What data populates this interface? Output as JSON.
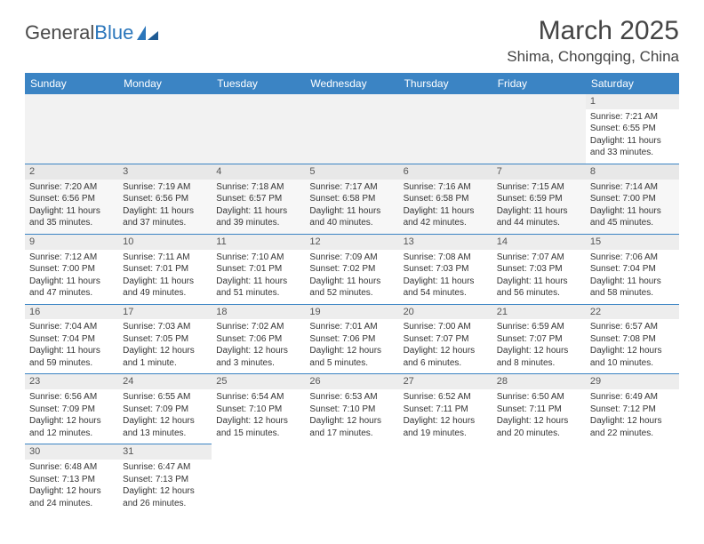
{
  "logo": {
    "text1": "General",
    "text2": "Blue"
  },
  "title": "March 2025",
  "location": "Shima, Chongqing, China",
  "colors": {
    "header_bg": "#3b84c4",
    "header_text": "#ffffff",
    "cell_border": "#3b84c4",
    "daynum_bg": "#ededed",
    "body_text": "#333333"
  },
  "weekdays": [
    "Sunday",
    "Monday",
    "Tuesday",
    "Wednesday",
    "Thursday",
    "Friday",
    "Saturday"
  ],
  "weeks": [
    [
      null,
      null,
      null,
      null,
      null,
      null,
      {
        "d": "1",
        "sr": "Sunrise: 7:21 AM",
        "ss": "Sunset: 6:55 PM",
        "dl": "Daylight: 11 hours and 33 minutes."
      }
    ],
    [
      {
        "d": "2",
        "sr": "Sunrise: 7:20 AM",
        "ss": "Sunset: 6:56 PM",
        "dl": "Daylight: 11 hours and 35 minutes."
      },
      {
        "d": "3",
        "sr": "Sunrise: 7:19 AM",
        "ss": "Sunset: 6:56 PM",
        "dl": "Daylight: 11 hours and 37 minutes."
      },
      {
        "d": "4",
        "sr": "Sunrise: 7:18 AM",
        "ss": "Sunset: 6:57 PM",
        "dl": "Daylight: 11 hours and 39 minutes."
      },
      {
        "d": "5",
        "sr": "Sunrise: 7:17 AM",
        "ss": "Sunset: 6:58 PM",
        "dl": "Daylight: 11 hours and 40 minutes."
      },
      {
        "d": "6",
        "sr": "Sunrise: 7:16 AM",
        "ss": "Sunset: 6:58 PM",
        "dl": "Daylight: 11 hours and 42 minutes."
      },
      {
        "d": "7",
        "sr": "Sunrise: 7:15 AM",
        "ss": "Sunset: 6:59 PM",
        "dl": "Daylight: 11 hours and 44 minutes."
      },
      {
        "d": "8",
        "sr": "Sunrise: 7:14 AM",
        "ss": "Sunset: 7:00 PM",
        "dl": "Daylight: 11 hours and 45 minutes."
      }
    ],
    [
      {
        "d": "9",
        "sr": "Sunrise: 7:12 AM",
        "ss": "Sunset: 7:00 PM",
        "dl": "Daylight: 11 hours and 47 minutes."
      },
      {
        "d": "10",
        "sr": "Sunrise: 7:11 AM",
        "ss": "Sunset: 7:01 PM",
        "dl": "Daylight: 11 hours and 49 minutes."
      },
      {
        "d": "11",
        "sr": "Sunrise: 7:10 AM",
        "ss": "Sunset: 7:01 PM",
        "dl": "Daylight: 11 hours and 51 minutes."
      },
      {
        "d": "12",
        "sr": "Sunrise: 7:09 AM",
        "ss": "Sunset: 7:02 PM",
        "dl": "Daylight: 11 hours and 52 minutes."
      },
      {
        "d": "13",
        "sr": "Sunrise: 7:08 AM",
        "ss": "Sunset: 7:03 PM",
        "dl": "Daylight: 11 hours and 54 minutes."
      },
      {
        "d": "14",
        "sr": "Sunrise: 7:07 AM",
        "ss": "Sunset: 7:03 PM",
        "dl": "Daylight: 11 hours and 56 minutes."
      },
      {
        "d": "15",
        "sr": "Sunrise: 7:06 AM",
        "ss": "Sunset: 7:04 PM",
        "dl": "Daylight: 11 hours and 58 minutes."
      }
    ],
    [
      {
        "d": "16",
        "sr": "Sunrise: 7:04 AM",
        "ss": "Sunset: 7:04 PM",
        "dl": "Daylight: 11 hours and 59 minutes."
      },
      {
        "d": "17",
        "sr": "Sunrise: 7:03 AM",
        "ss": "Sunset: 7:05 PM",
        "dl": "Daylight: 12 hours and 1 minute."
      },
      {
        "d": "18",
        "sr": "Sunrise: 7:02 AM",
        "ss": "Sunset: 7:06 PM",
        "dl": "Daylight: 12 hours and 3 minutes."
      },
      {
        "d": "19",
        "sr": "Sunrise: 7:01 AM",
        "ss": "Sunset: 7:06 PM",
        "dl": "Daylight: 12 hours and 5 minutes."
      },
      {
        "d": "20",
        "sr": "Sunrise: 7:00 AM",
        "ss": "Sunset: 7:07 PM",
        "dl": "Daylight: 12 hours and 6 minutes."
      },
      {
        "d": "21",
        "sr": "Sunrise: 6:59 AM",
        "ss": "Sunset: 7:07 PM",
        "dl": "Daylight: 12 hours and 8 minutes."
      },
      {
        "d": "22",
        "sr": "Sunrise: 6:57 AM",
        "ss": "Sunset: 7:08 PM",
        "dl": "Daylight: 12 hours and 10 minutes."
      }
    ],
    [
      {
        "d": "23",
        "sr": "Sunrise: 6:56 AM",
        "ss": "Sunset: 7:09 PM",
        "dl": "Daylight: 12 hours and 12 minutes."
      },
      {
        "d": "24",
        "sr": "Sunrise: 6:55 AM",
        "ss": "Sunset: 7:09 PM",
        "dl": "Daylight: 12 hours and 13 minutes."
      },
      {
        "d": "25",
        "sr": "Sunrise: 6:54 AM",
        "ss": "Sunset: 7:10 PM",
        "dl": "Daylight: 12 hours and 15 minutes."
      },
      {
        "d": "26",
        "sr": "Sunrise: 6:53 AM",
        "ss": "Sunset: 7:10 PM",
        "dl": "Daylight: 12 hours and 17 minutes."
      },
      {
        "d": "27",
        "sr": "Sunrise: 6:52 AM",
        "ss": "Sunset: 7:11 PM",
        "dl": "Daylight: 12 hours and 19 minutes."
      },
      {
        "d": "28",
        "sr": "Sunrise: 6:50 AM",
        "ss": "Sunset: 7:11 PM",
        "dl": "Daylight: 12 hours and 20 minutes."
      },
      {
        "d": "29",
        "sr": "Sunrise: 6:49 AM",
        "ss": "Sunset: 7:12 PM",
        "dl": "Daylight: 12 hours and 22 minutes."
      }
    ],
    [
      {
        "d": "30",
        "sr": "Sunrise: 6:48 AM",
        "ss": "Sunset: 7:13 PM",
        "dl": "Daylight: 12 hours and 24 minutes."
      },
      {
        "d": "31",
        "sr": "Sunrise: 6:47 AM",
        "ss": "Sunset: 7:13 PM",
        "dl": "Daylight: 12 hours and 26 minutes."
      },
      null,
      null,
      null,
      null,
      null
    ]
  ]
}
